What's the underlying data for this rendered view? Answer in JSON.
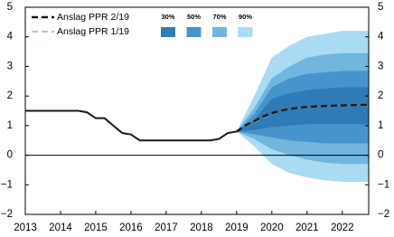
{
  "chart_data": {
    "type": "fan",
    "xlim": [
      2013,
      2022.75
    ],
    "xticks": [
      2013,
      2014,
      2015,
      2016,
      2017,
      2018,
      2019,
      2020,
      2021,
      2022
    ],
    "ylim": [
      -2,
      5
    ],
    "yticks": [
      {
        "value": -2,
        "label": "−2"
      },
      {
        "value": -1,
        "label": "−1"
      },
      0,
      1,
      2,
      3,
      4,
      5
    ],
    "history": {
      "color": "#1a1a1a",
      "x": [
        2013,
        2014.5,
        2014.75,
        2015,
        2015.25,
        2015.5,
        2015.75,
        2016,
        2016.25,
        2018.25,
        2018.5,
        2018.75,
        2019
      ],
      "values": [
        1.5,
        1.5,
        1.45,
        1.25,
        1.25,
        1.0,
        0.75,
        0.7,
        0.5,
        0.5,
        0.55,
        0.75,
        0.8
      ]
    },
    "forecast_x": [
      2019,
      2019.25,
      2019.5,
      2019.75,
      2020,
      2020.25,
      2020.5,
      2020.75,
      2021,
      2021.5,
      2022,
      2022.75
    ],
    "series": [
      {
        "name": "Anslag PPR 2/19",
        "color": "#1a1a1a",
        "values": [
          0.8,
          1.0,
          1.15,
          1.3,
          1.42,
          1.5,
          1.56,
          1.6,
          1.63,
          1.66,
          1.68,
          1.7
        ]
      },
      {
        "name": "Anslag PPR 1/19",
        "color": "#c6c9a4",
        "values": [
          0.8,
          0.98,
          1.12,
          1.27,
          1.4,
          1.49,
          1.55,
          1.59,
          1.62,
          1.65,
          1.67,
          1.68
        ]
      }
    ],
    "band_x": [
      2019,
      2019.5,
      2020,
      2020.5,
      2021,
      2021.5,
      2022,
      2022.75
    ],
    "bands": [
      {
        "name": "90%",
        "color": "#aadbf3",
        "lower": [
          0.8,
          0.3,
          -0.3,
          -0.6,
          -0.75,
          -0.85,
          -0.9,
          -0.9
        ],
        "upper": [
          0.8,
          2.0,
          3.3,
          3.7,
          4.0,
          4.1,
          4.2,
          4.2
        ]
      },
      {
        "name": "70%",
        "color": "#72b6e0",
        "lower": [
          0.8,
          0.55,
          0.2,
          0.0,
          -0.15,
          -0.25,
          -0.3,
          -0.3
        ],
        "upper": [
          0.8,
          1.6,
          2.6,
          3.0,
          3.3,
          3.4,
          3.45,
          3.45
        ]
      },
      {
        "name": "50%",
        "color": "#4794cc",
        "lower": [
          0.8,
          0.7,
          0.6,
          0.5,
          0.45,
          0.4,
          0.4,
          0.4
        ],
        "upper": [
          0.8,
          1.4,
          2.3,
          2.6,
          2.75,
          2.8,
          2.85,
          2.85
        ]
      },
      {
        "name": "30%",
        "color": "#2e7bb7",
        "lower": [
          0.8,
          0.85,
          0.95,
          1.0,
          1.05,
          1.05,
          1.05,
          1.05
        ],
        "upper": [
          0.8,
          1.2,
          1.9,
          2.1,
          2.2,
          2.25,
          2.3,
          2.3
        ]
      }
    ]
  }
}
